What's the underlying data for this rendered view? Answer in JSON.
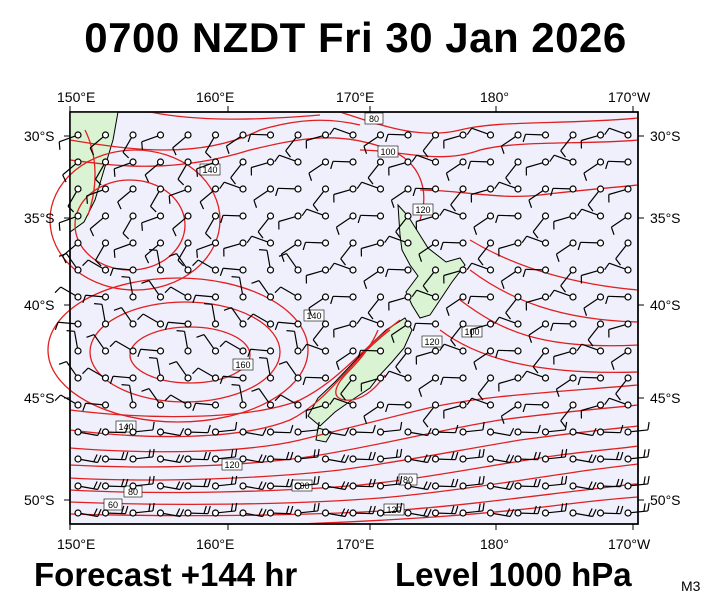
{
  "title": "0700 NZDT Fri 30 Jan 2026",
  "footer": {
    "forecast": "Forecast +144 hr",
    "level": "Level 1000 hPa",
    "model": "M3"
  },
  "map": {
    "lon_labels": [
      "150°E",
      "160°E",
      "170°E",
      "180°",
      "170°W"
    ],
    "lat_labels": [
      "30°S",
      "35°S",
      "40°S",
      "45°S",
      "50°S"
    ],
    "contour_labels": [
      "80",
      "100",
      "120",
      "140",
      "160",
      "140",
      "120",
      "100",
      "80",
      "60",
      "120",
      "100",
      "80",
      "140",
      "120"
    ],
    "colors": {
      "ocean": "#f0f0fc",
      "land": "#d9f3d3",
      "contour": "#e02020",
      "barb": "#000000",
      "frame": "#000000"
    }
  }
}
